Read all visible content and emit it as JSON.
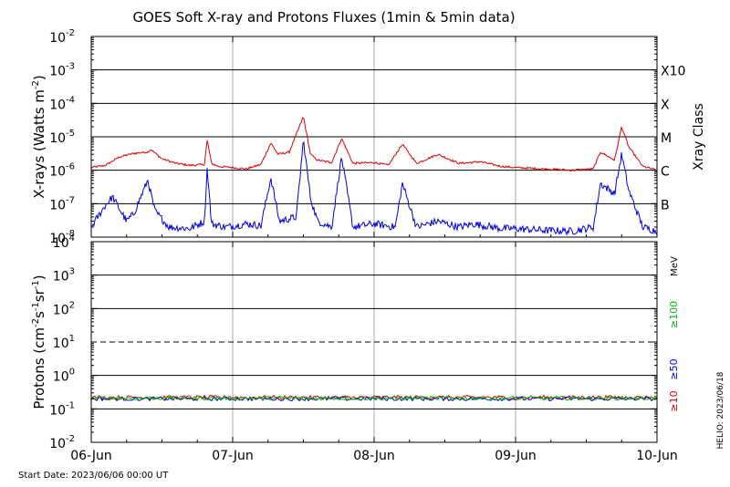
{
  "title": "GOES Soft X-ray and Protons Fluxes   (1min & 5min data)",
  "start_date": "Start Date: 2023/06/06 00:00 UT",
  "credit": "HELIO: 2023/06/18",
  "colors": {
    "xray_long": "#dd0000",
    "xray_short": "#0000dd",
    "proton_10": "#dd0000",
    "proton_50": "#0000dd",
    "proton_100": "#00bb00"
  },
  "chart_data": [
    {
      "type": "line",
      "panel": "xray",
      "ylabel_text": "X-rays (Watts m",
      "ylabel_sup": "-2",
      "ylabel_close": ")",
      "y_scale": "log",
      "ylim": [
        1e-08,
        0.01
      ],
      "y_ticks": [
        {
          "mant": "10",
          "exp": "-2"
        },
        {
          "mant": "10",
          "exp": "-3"
        },
        {
          "mant": "10",
          "exp": "-4"
        },
        {
          "mant": "10",
          "exp": "-5"
        },
        {
          "mant": "10",
          "exp": "-6"
        },
        {
          "mant": "10",
          "exp": "-7"
        },
        {
          "mant": "10",
          "exp": "-8"
        }
      ],
      "class_title": "Xray Class",
      "class_labels": [
        {
          "label": "X10",
          "flux": 0.001
        },
        {
          "label": "X",
          "flux": 0.0001
        },
        {
          "label": "M",
          "flux": 1e-05
        },
        {
          "label": "C",
          "flux": 1e-06
        },
        {
          "label": "B",
          "flux": 1e-07
        }
      ],
      "x_range_days": [
        0,
        4
      ],
      "series": [
        {
          "key": "xray_long",
          "x": [
            0,
            0.1,
            0.2,
            0.3,
            0.4,
            0.42,
            0.5,
            0.6,
            0.7,
            0.8,
            0.82,
            0.85,
            0.9,
            1.0,
            1.1,
            1.2,
            1.27,
            1.32,
            1.4,
            1.5,
            1.55,
            1.6,
            1.7,
            1.77,
            1.85,
            2.0,
            2.1,
            2.2,
            2.3,
            2.45,
            2.6,
            2.75,
            2.9,
            3.0,
            3.2,
            3.4,
            3.55,
            3.6,
            3.7,
            3.75,
            3.8,
            3.9,
            4.0
          ],
          "y": [
            1.2e-06,
            1.4e-06,
            2.5e-06,
            3.2e-06,
            3.5e-06,
            4.2e-06,
            2.2e-06,
            1.6e-06,
            1.4e-06,
            1.5e-06,
            8e-06,
            1.6e-06,
            1.3e-06,
            1.2e-06,
            1.1e-06,
            1.5e-06,
            6.5e-06,
            3e-06,
            3.5e-06,
            4e-05,
            3e-06,
            2e-06,
            1.7e-06,
            9e-06,
            1.6e-06,
            1.7e-06,
            1.4e-06,
            6e-06,
            1.6e-06,
            3e-06,
            1.6e-06,
            1.8e-06,
            1.3e-06,
            1.2e-06,
            1.1e-06,
            1e-06,
            1.1e-06,
            3.5e-06,
            2e-06,
            2e-05,
            5e-06,
            1.3e-06,
            1e-06
          ]
        },
        {
          "key": "xray_short",
          "x": [
            0,
            0.1,
            0.15,
            0.25,
            0.3,
            0.4,
            0.45,
            0.55,
            0.7,
            0.8,
            0.82,
            0.85,
            0.95,
            1.1,
            1.2,
            1.27,
            1.33,
            1.45,
            1.5,
            1.55,
            1.6,
            1.7,
            1.77,
            1.85,
            2.0,
            2.15,
            2.2,
            2.3,
            2.45,
            2.6,
            2.7,
            2.9,
            3.0,
            3.2,
            3.4,
            3.55,
            3.6,
            3.7,
            3.75,
            3.8,
            3.9,
            4.0
          ],
          "y": [
            2e-08,
            9e-08,
            1.6e-07,
            3e-08,
            5e-08,
            5e-07,
            6e-08,
            2e-08,
            1.8e-08,
            3e-08,
            1.2e-06,
            2.5e-08,
            2e-08,
            2.5e-08,
            2.2e-08,
            6e-07,
            3e-08,
            4e-08,
            8e-06,
            1.5e-07,
            3e-08,
            2e-08,
            2.5e-06,
            2e-08,
            2.5e-08,
            2e-08,
            4e-07,
            2e-08,
            3e-08,
            2e-08,
            2.5e-08,
            1.8e-08,
            1.8e-08,
            1.6e-08,
            1.5e-08,
            2e-08,
            4e-07,
            2e-07,
            3e-06,
            2.5e-07,
            2e-08,
            1.5e-08
          ]
        }
      ]
    },
    {
      "type": "line",
      "panel": "protons",
      "ylabel_text": "Protons (cm",
      "ylabel_sup1": "-2",
      "ylabel_mid": "s",
      "ylabel_sup2": "-1",
      "ylabel_mid2": "sr",
      "ylabel_sup3": "-1",
      "ylabel_close": ")",
      "y_scale": "log",
      "ylim": [
        0.01,
        10000
      ],
      "y_ticks": [
        {
          "mant": "10",
          "exp": "4"
        },
        {
          "mant": "10",
          "exp": "3"
        },
        {
          "mant": "10",
          "exp": "2"
        },
        {
          "mant": "10",
          "exp": "1"
        },
        {
          "mant": "10",
          "exp": "0"
        },
        {
          "mant": "10",
          "exp": "-1"
        },
        {
          "mant": "10",
          "exp": "-2"
        }
      ],
      "threshold_flux": 10,
      "energy_unit": "MeV",
      "energy_labels": [
        {
          "label": "≥100",
          "key": "proton_100"
        },
        {
          "label": "≥50",
          "key": "proton_50"
        },
        {
          "label": "≥10",
          "key": "proton_10"
        }
      ],
      "series": [
        {
          "key": "proton_10",
          "level": 0.22
        },
        {
          "key": "proton_50",
          "level": 0.2
        },
        {
          "key": "proton_100",
          "level": 0.21
        }
      ],
      "x_tick_labels": [
        "06-Jun",
        "07-Jun",
        "08-Jun",
        "09-Jun",
        "10-Jun"
      ]
    }
  ]
}
